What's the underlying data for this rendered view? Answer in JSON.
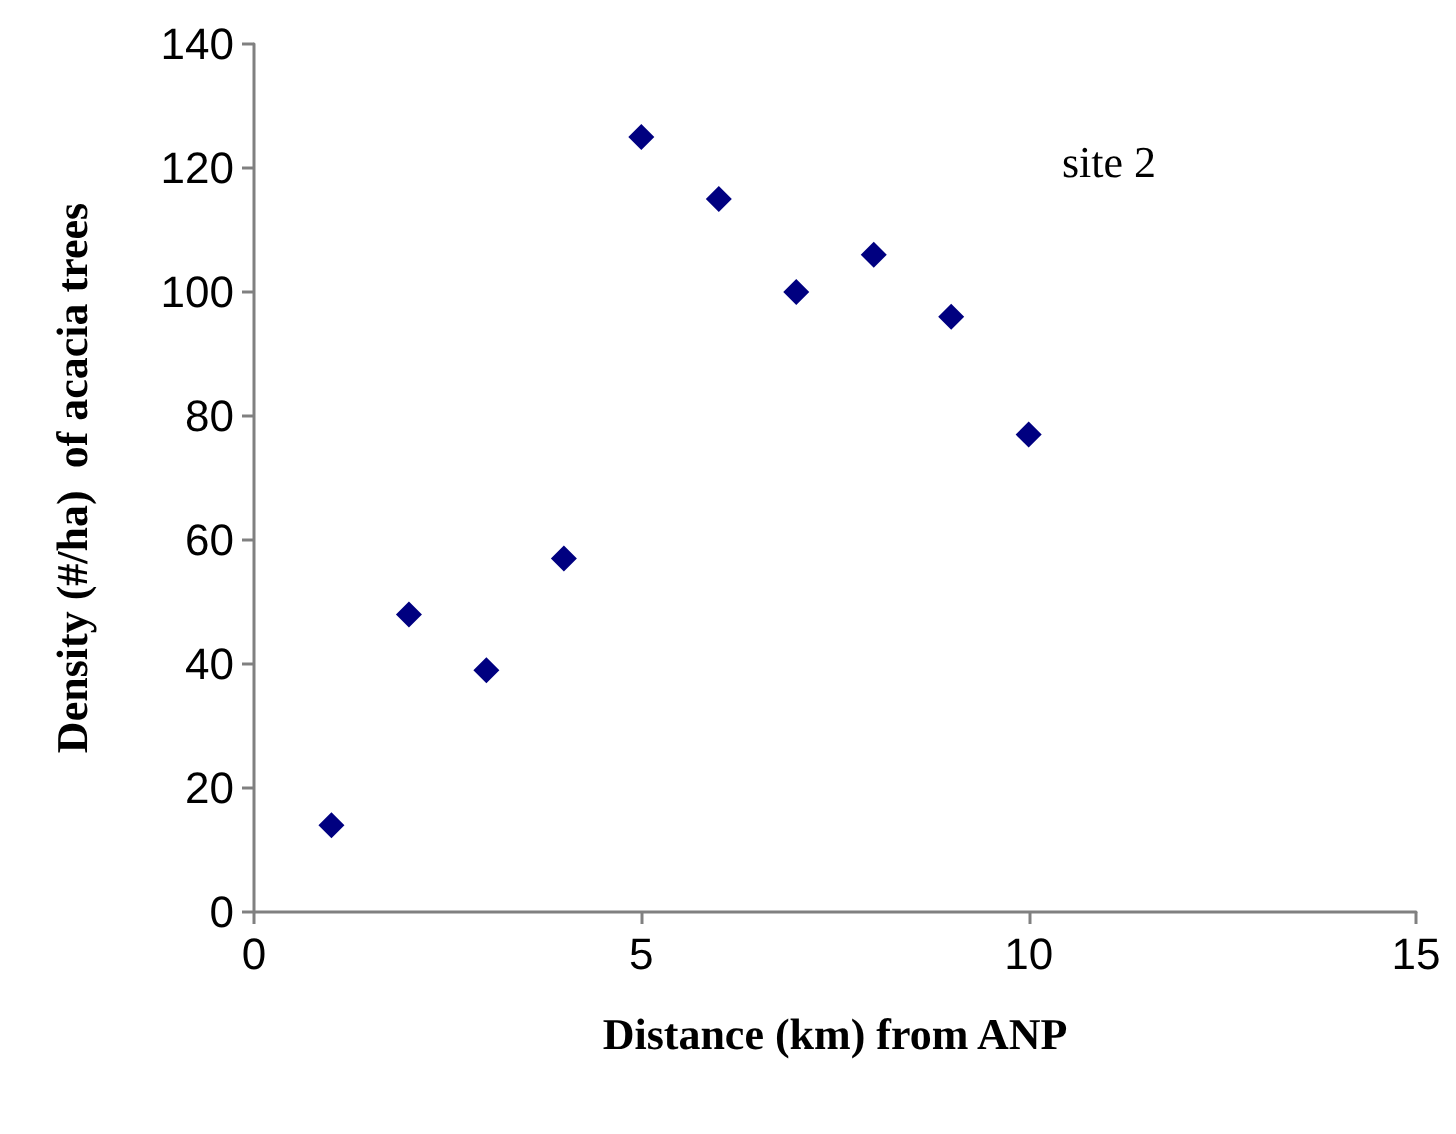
{
  "chart_data": {
    "type": "scatter",
    "xlabel": "Distance (km) from ANP",
    "ylabel": "Density (#/ha)  of acacia trees",
    "annotations": [
      "site 2"
    ],
    "x": [
      1,
      2,
      3,
      4,
      5,
      6,
      7,
      8,
      9,
      10
    ],
    "series": [
      {
        "color": "#000080",
        "values": [
          14,
          48,
          39,
          57,
          125,
          115,
          100,
          106,
          96,
          77
        ]
      }
    ],
    "xlim": [
      0,
      15
    ],
    "xticks": [
      0,
      5,
      10,
      15
    ],
    "ylim": [
      0,
      140
    ],
    "yticks": [
      0,
      20,
      40,
      60,
      80,
      100,
      120,
      140
    ],
    "grid": false,
    "marker": "diamond"
  }
}
